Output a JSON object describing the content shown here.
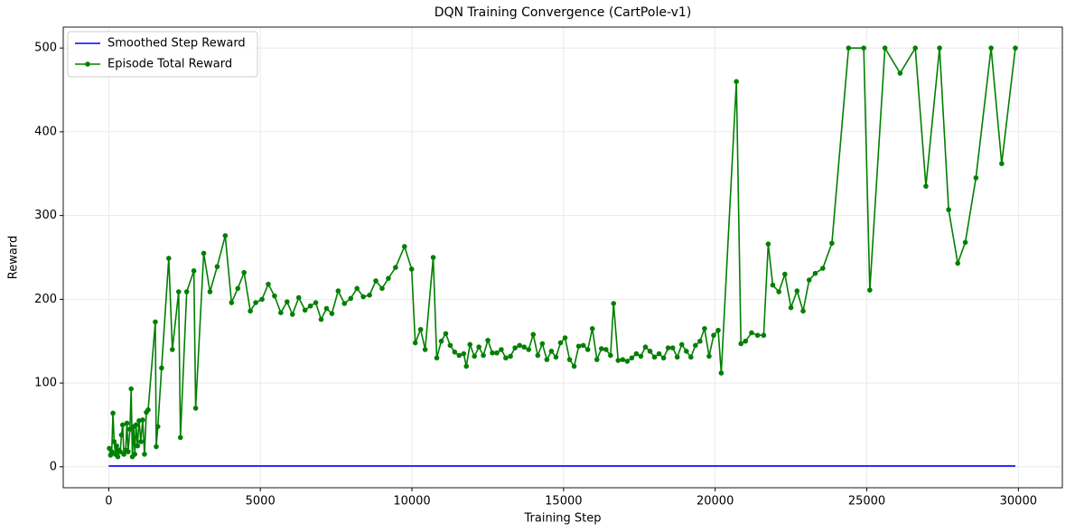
{
  "chart_data": {
    "type": "line",
    "title": "DQN Training Convergence (CartPole-v1)",
    "xlabel": "Training Step",
    "ylabel": "Reward",
    "xlim": [
      -1500,
      31450
    ],
    "ylim": [
      -25,
      525
    ],
    "xticks": [
      0,
      5000,
      10000,
      15000,
      20000,
      25000,
      30000
    ],
    "yticks": [
      0,
      100,
      200,
      300,
      400,
      500
    ],
    "grid": true,
    "legend": "upper left",
    "series": [
      {
        "name": "Smoothed Step Reward",
        "color": "#0000ff",
        "marker": false,
        "x": [
          0,
          29900
        ],
        "values": [
          1,
          1
        ]
      },
      {
        "name": "Episode Total Reward",
        "color": "#008000",
        "marker": true,
        "x": [
          20,
          60,
          100,
          140,
          180,
          220,
          260,
          300,
          340,
          380,
          420,
          460,
          500,
          560,
          600,
          640,
          700,
          740,
          780,
          820,
          860,
          900,
          950,
          1000,
          1060,
          1120,
          1180,
          1240,
          1300,
          1537,
          1567,
          1620,
          1744,
          1980,
          2099,
          2306,
          2365,
          2572,
          2808,
          2867,
          3133,
          3340,
          3577,
          3843,
          4050,
          4257,
          4464,
          4670,
          4848,
          5055,
          5262,
          5468,
          5675,
          5882,
          6060,
          6267,
          6474,
          6651,
          6828,
          7006,
          7183,
          7360,
          7567,
          7774,
          7981,
          8188,
          8395,
          8602,
          8809,
          9016,
          9223,
          9459,
          9755,
          9991,
          10109,
          10287,
          10435,
          10701,
          10819,
          10967,
          11115,
          11262,
          11410,
          11558,
          11706,
          11794,
          11913,
          12061,
          12208,
          12356,
          12504,
          12652,
          12800,
          12947,
          13095,
          13250,
          13400,
          13550,
          13700,
          13850,
          14000,
          14150,
          14300,
          14450,
          14600,
          14750,
          14900,
          15050,
          15200,
          15350,
          15500,
          15650,
          15800,
          15950,
          16100,
          16250,
          16400,
          16550,
          16650,
          16800,
          16950,
          17100,
          17250,
          17400,
          17550,
          17700,
          17850,
          18000,
          18150,
          18300,
          18450,
          18600,
          18750,
          18900,
          19050,
          19200,
          19350,
          19500,
          19650,
          19800,
          19950,
          20100,
          20200,
          20700,
          20850,
          21000,
          21200,
          21400,
          21600,
          21750,
          21900,
          22100,
          22300,
          22500,
          22700,
          22900,
          23100,
          23300,
          23550,
          23850,
          24400,
          24900,
          25100,
          25600,
          26100,
          26600,
          26950,
          27400,
          27700,
          28000,
          28250,
          28600,
          29100,
          29450,
          29900
        ],
        "values": [
          22,
          14,
          18,
          64,
          30,
          15,
          25,
          12,
          20,
          18,
          38,
          50,
          15,
          20,
          52,
          18,
          45,
          93,
          12,
          48,
          15,
          50,
          25,
          55,
          30,
          56,
          15,
          65,
          68,
          173,
          24,
          48,
          118,
          249,
          140,
          209,
          35,
          209,
          234,
          70,
          255,
          209,
          239,
          276,
          196,
          213,
          232,
          186,
          196,
          200,
          218,
          204,
          184,
          197,
          182,
          202,
          187,
          192,
          196,
          176,
          189,
          183,
          210,
          195,
          201,
          213,
          203,
          205,
          222,
          213,
          225,
          238,
          263,
          236,
          148,
          164,
          140,
          250,
          130,
          150,
          159,
          145,
          137,
          133,
          135,
          120,
          146,
          132,
          143,
          133,
          151,
          136,
          136,
          140,
          130,
          132,
          142,
          145,
          143,
          140,
          158,
          133,
          147,
          128,
          138,
          131,
          148,
          154,
          128,
          120,
          144,
          145,
          140,
          165,
          128,
          141,
          140,
          133,
          195,
          127,
          128,
          126,
          130,
          135,
          132,
          143,
          138,
          131,
          135,
          130,
          142,
          142,
          131,
          146,
          138,
          131,
          145,
          150,
          165,
          132,
          157,
          163,
          112,
          460,
          147,
          150,
          160,
          157,
          157,
          266,
          217,
          209,
          230,
          190,
          210,
          186,
          223,
          231,
          237,
          267,
          500,
          500,
          211,
          500,
          470,
          500,
          335,
          500,
          307,
          243,
          268,
          345,
          500,
          362,
          500
        ]
      }
    ]
  }
}
